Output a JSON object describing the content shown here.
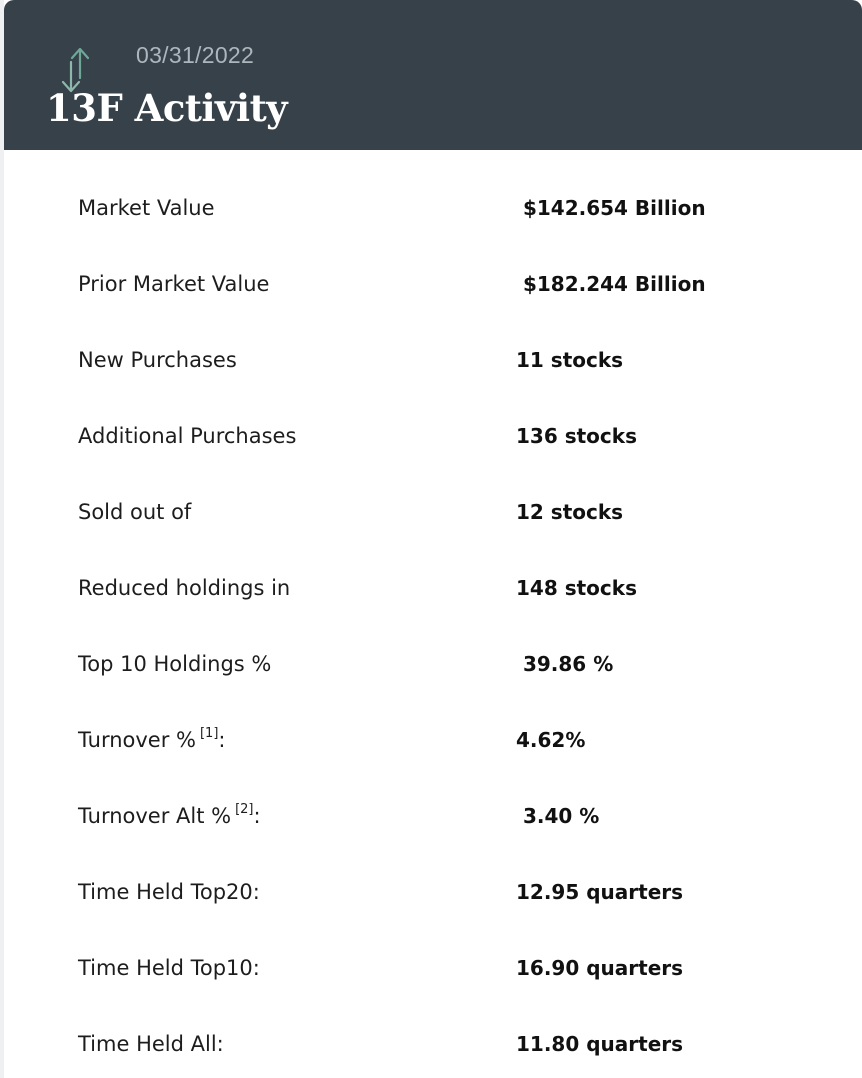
{
  "header": {
    "date": "03/31/2022",
    "title": "13F Activity",
    "icon": "up-down-arrows-icon"
  },
  "colors": {
    "header_background": "#36414a",
    "icon_up": "#6fa797",
    "icon_down": "#8eb7ac",
    "date_text": "#aeb6bd"
  },
  "rows": [
    {
      "label": "Market Value",
      "value": " $142.654 Billion"
    },
    {
      "label": "Prior Market Value",
      "value": " $182.244 Billion"
    },
    {
      "label": "New Purchases",
      "value": "11 stocks"
    },
    {
      "label": "Additional Purchases",
      "value": "136 stocks"
    },
    {
      "label": "Sold out of",
      "value": "12 stocks"
    },
    {
      "label": "Reduced holdings in",
      "value": "148 stocks"
    },
    {
      "label": "Top 10 Holdings %",
      "value": " 39.86 %"
    },
    {
      "label": "Turnover %",
      "footnote": "[1]",
      "suffix": ":",
      "value": "4.62%"
    },
    {
      "label": "Turnover Alt %",
      "footnote": "[2]",
      "suffix": ":",
      "value": " 3.40 %"
    },
    {
      "label": "Time Held Top20:",
      "value": "12.95 quarters"
    },
    {
      "label": "Time Held Top10:",
      "value": "16.90 quarters"
    },
    {
      "label": "Time Held All:",
      "value": "11.80 quarters"
    }
  ]
}
